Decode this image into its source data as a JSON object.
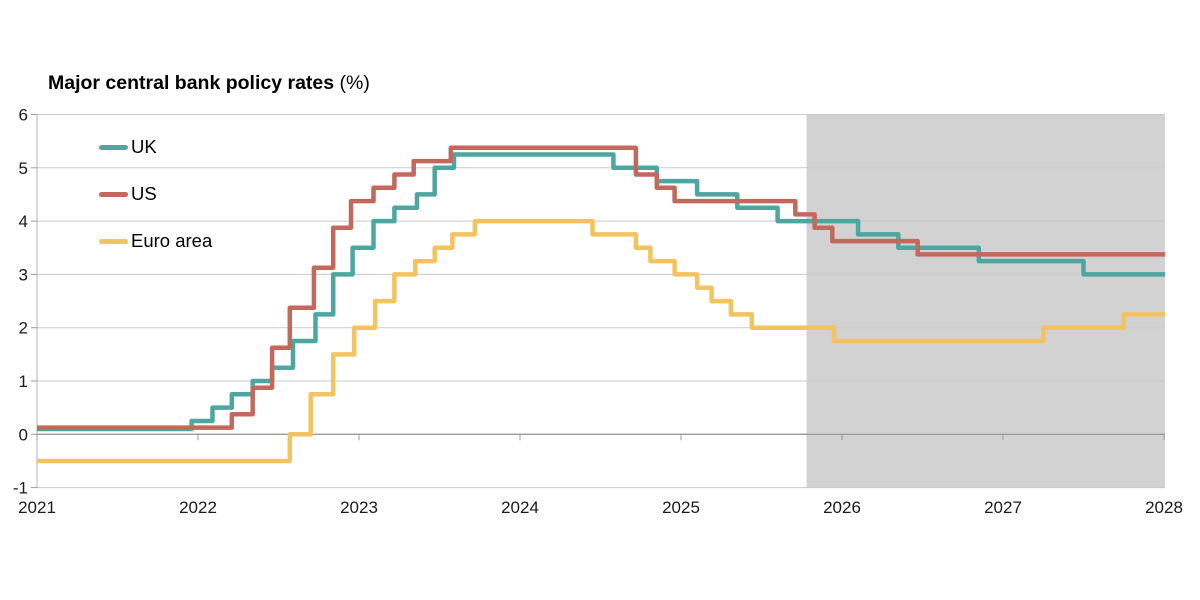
{
  "title": {
    "main": "Major central bank policy rates",
    "suffix": "(%)"
  },
  "colors": {
    "background": "#ffffff",
    "gridline": "#c9c9c9",
    "zero_line": "#9a9a9a",
    "axis_line": "#b3b3b3",
    "tick_mark": "#9a9a9a",
    "tick_text": "#1a1a1a",
    "forecast_shade": "#d2d2d2"
  },
  "chart_data": {
    "type": "line",
    "line_style": "step",
    "title": "Major central bank policy rates (%)",
    "x_range": [
      2021,
      2028
    ],
    "y_range": [
      -1,
      6
    ],
    "x_ticks": [
      2021,
      2022,
      2023,
      2024,
      2025,
      2026,
      2027,
      2028
    ],
    "y_ticks": [
      -1,
      0,
      1,
      2,
      3,
      4,
      5,
      6
    ],
    "grid": "horizontal",
    "legend_position": "inside-top-left",
    "forecast_region": {
      "start_x": 2025.78,
      "end_x": 2028,
      "color": "#d2d2d2"
    },
    "series": [
      {
        "name": "UK",
        "color": "#4EA6A1",
        "steps": [
          [
            2021.0,
            0.1
          ],
          [
            2021.96,
            0.25
          ],
          [
            2022.09,
            0.5
          ],
          [
            2022.21,
            0.75
          ],
          [
            2022.34,
            1.0
          ],
          [
            2022.46,
            1.25
          ],
          [
            2022.59,
            1.75
          ],
          [
            2022.73,
            2.25
          ],
          [
            2022.84,
            3.0
          ],
          [
            2022.96,
            3.5
          ],
          [
            2023.09,
            4.0
          ],
          [
            2023.22,
            4.25
          ],
          [
            2023.36,
            4.5
          ],
          [
            2023.47,
            5.0
          ],
          [
            2023.59,
            5.25
          ],
          [
            2024.58,
            5.0
          ],
          [
            2024.85,
            4.75
          ],
          [
            2025.1,
            4.5
          ],
          [
            2025.35,
            4.25
          ],
          [
            2025.6,
            4.0
          ],
          [
            2026.1,
            3.75
          ],
          [
            2026.35,
            3.5
          ],
          [
            2026.85,
            3.25
          ],
          [
            2027.5,
            3.0
          ]
        ],
        "end_value": 3.0
      },
      {
        "name": "US",
        "color": "#C3685D",
        "steps": [
          [
            2021.0,
            0.125
          ],
          [
            2022.21,
            0.375
          ],
          [
            2022.34,
            0.875
          ],
          [
            2022.46,
            1.625
          ],
          [
            2022.57,
            2.375
          ],
          [
            2022.72,
            3.125
          ],
          [
            2022.84,
            3.875
          ],
          [
            2022.95,
            4.375
          ],
          [
            2023.09,
            4.625
          ],
          [
            2023.22,
            4.875
          ],
          [
            2023.34,
            5.125
          ],
          [
            2023.57,
            5.375
          ],
          [
            2024.72,
            4.875
          ],
          [
            2024.85,
            4.625
          ],
          [
            2024.96,
            4.375
          ],
          [
            2025.71,
            4.125
          ],
          [
            2025.83,
            3.875
          ],
          [
            2025.94,
            3.625
          ],
          [
            2026.47,
            3.375
          ]
        ],
        "end_value": 3.375
      },
      {
        "name": "Euro area",
        "color": "#F3C35F",
        "steps": [
          [
            2021.0,
            -0.5
          ],
          [
            2022.57,
            0.0
          ],
          [
            2022.7,
            0.75
          ],
          [
            2022.84,
            1.5
          ],
          [
            2022.97,
            2.0
          ],
          [
            2023.1,
            2.5
          ],
          [
            2023.22,
            3.0
          ],
          [
            2023.35,
            3.25
          ],
          [
            2023.47,
            3.5
          ],
          [
            2023.58,
            3.75
          ],
          [
            2023.72,
            4.0
          ],
          [
            2024.45,
            3.75
          ],
          [
            2024.72,
            3.5
          ],
          [
            2024.81,
            3.25
          ],
          [
            2024.96,
            3.0
          ],
          [
            2025.1,
            2.75
          ],
          [
            2025.19,
            2.5
          ],
          [
            2025.31,
            2.25
          ],
          [
            2025.44,
            2.0
          ],
          [
            2025.95,
            1.75
          ],
          [
            2027.25,
            2.0
          ],
          [
            2027.75,
            2.25
          ]
        ],
        "end_value": 2.25
      }
    ]
  }
}
